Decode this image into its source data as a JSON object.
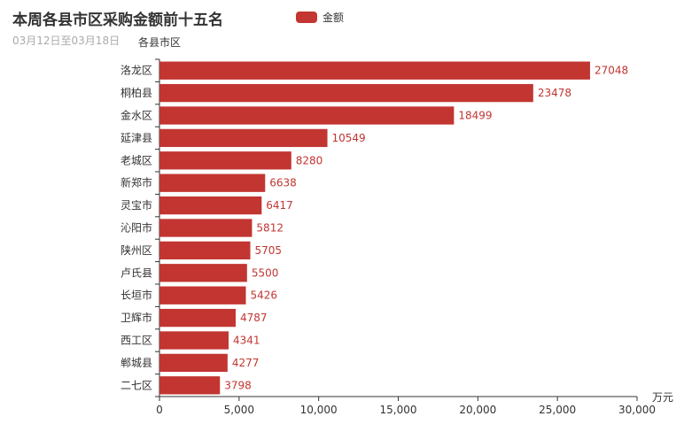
{
  "colors": {
    "bar": "#c23531",
    "axis": "#333333",
    "label": "#c23531"
  },
  "chart_data": {
    "type": "bar",
    "orientation": "horizontal",
    "title": "本周各县市区采购金额前十五名",
    "subtitle": "03月12日至03月18日",
    "ylabel": "各县市区",
    "xlabel": "万元",
    "legend": {
      "entries": [
        "金额"
      ],
      "placement": "top-center"
    },
    "categories": [
      "洛龙区",
      "桐柏县",
      "金水区",
      "延津县",
      "老城区",
      "新郑市",
      "灵宝市",
      "沁阳市",
      "陕州区",
      "卢氏县",
      "长垣市",
      "卫辉市",
      "西工区",
      "郸城县",
      "二七区"
    ],
    "series": [
      {
        "name": "金额",
        "values": [
          27048,
          23478,
          18499,
          10549,
          8280,
          6638,
          6417,
          5812,
          5705,
          5500,
          5426,
          4787,
          4341,
          4277,
          3798
        ]
      }
    ],
    "xlim": [
      0,
      30000
    ],
    "xticks": [
      "0",
      "5,000",
      "10,000",
      "15,000",
      "20,000",
      "25,000",
      "30,000"
    ],
    "grid": false
  }
}
